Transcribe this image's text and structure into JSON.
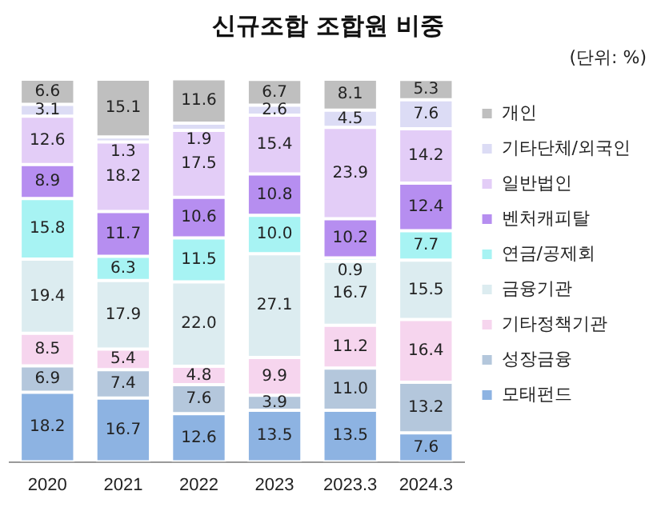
{
  "chart_data": {
    "type": "bar",
    "stacked": true,
    "title": "신규조합 조합원 비중",
    "subtitle": "(단위: %)",
    "categories": [
      "2020",
      "2021",
      "2022",
      "2023",
      "2023.3",
      "2024.3"
    ],
    "series": [
      {
        "name": "모태펀드",
        "color": "#8db3e2",
        "values": [
          18.2,
          16.7,
          12.6,
          13.5,
          13.5,
          7.6
        ]
      },
      {
        "name": "성장금융",
        "color": "#b4c7dc",
        "values": [
          6.9,
          7.4,
          7.6,
          3.9,
          11.0,
          13.2
        ],
        "value_labels": [
          "6.9",
          "7.4",
          "7.6",
          "3.9",
          "11.0",
          "13.2"
        ]
      },
      {
        "name": "기타정책기관",
        "color": "#f6d5ee",
        "values": [
          8.5,
          5.4,
          4.8,
          9.9,
          11.2,
          16.4
        ]
      },
      {
        "name": "금융기관",
        "color": "#dcecf0",
        "values": [
          19.4,
          17.9,
          22.0,
          27.1,
          16.7,
          15.5
        ],
        "value_labels": [
          "19.4",
          "17.9",
          "22.0",
          "27.1",
          "16.7",
          "15.5"
        ]
      },
      {
        "name": "연금/공제회",
        "color": "#a7f3f3",
        "values": [
          15.8,
          6.3,
          11.5,
          10.0,
          0.9,
          7.7
        ],
        "value_labels": [
          "15.8",
          "6.3",
          "11.5",
          "10.0",
          "0.9",
          "7.7"
        ]
      },
      {
        "name": "벤처캐피탈",
        "color": "#b68ef0",
        "values": [
          8.9,
          11.7,
          10.6,
          10.8,
          10.2,
          12.4
        ]
      },
      {
        "name": "일반법인",
        "color": "#e3cdf7",
        "values": [
          12.6,
          18.2,
          17.5,
          15.4,
          23.9,
          14.2
        ]
      },
      {
        "name": "기타단체/외국인",
        "color": "#dcdcf5",
        "values": [
          3.1,
          1.3,
          1.9,
          2.6,
          4.5,
          7.6
        ]
      },
      {
        "name": "개인",
        "color": "#bfbfbf",
        "values": [
          6.6,
          15.1,
          11.6,
          6.7,
          8.1,
          5.3
        ]
      }
    ],
    "data_labels": true,
    "legend": "right",
    "grid": false
  }
}
